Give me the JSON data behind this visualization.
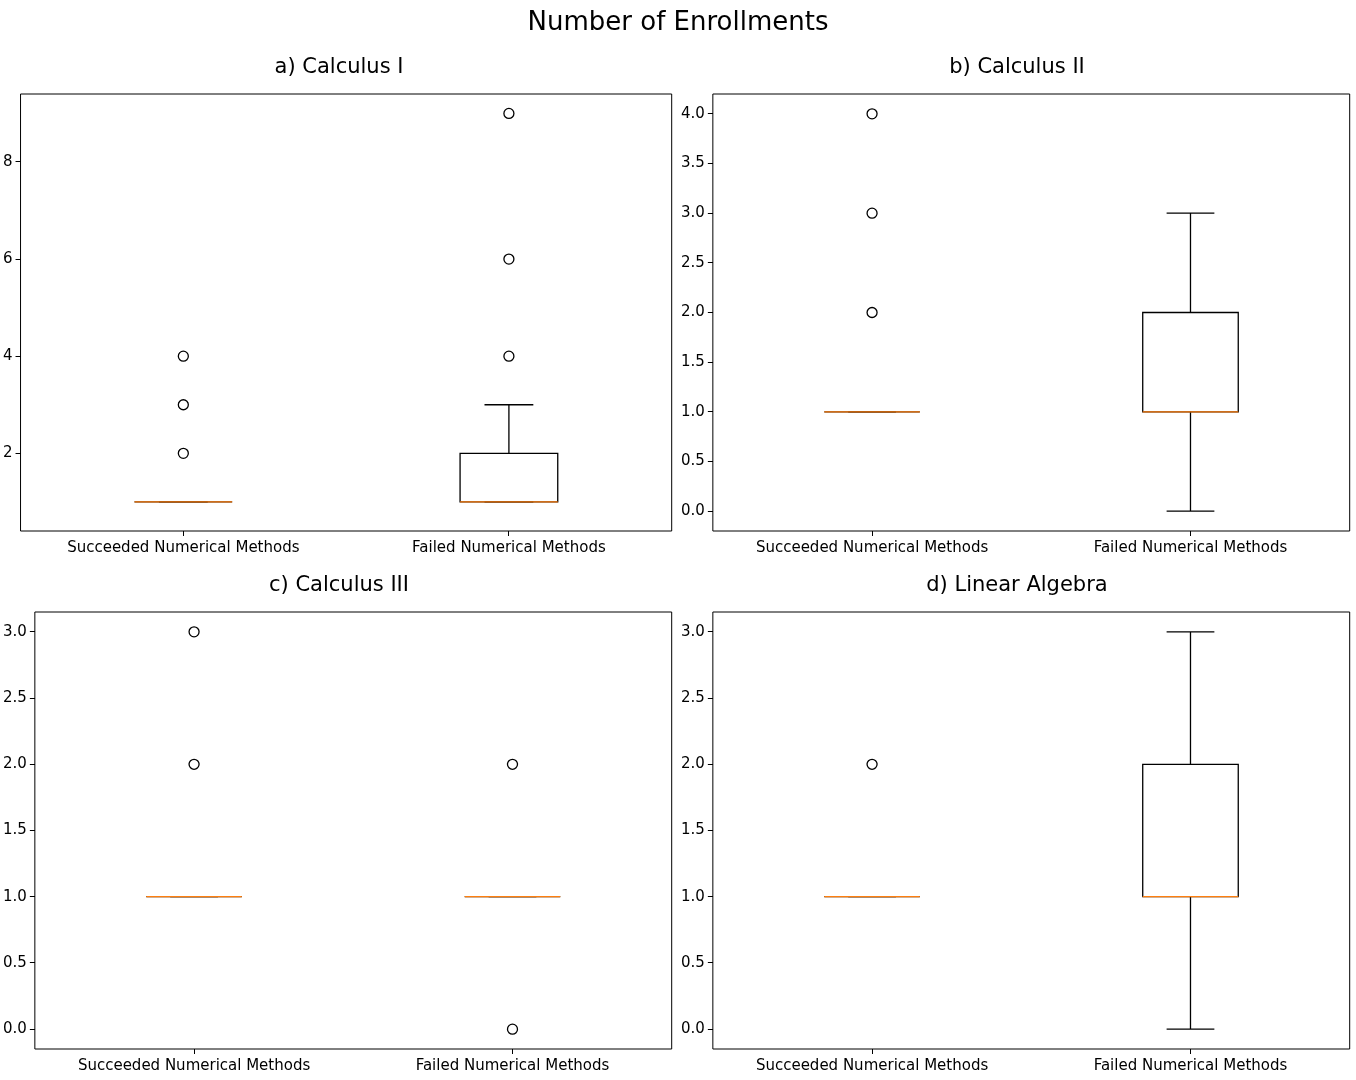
{
  "chart_data": [
    {
      "type": "box",
      "title": "a) Calculus I",
      "annotations": [
        "Number of Enrollments"
      ],
      "categories": [
        "Succeeded Numerical Methods",
        "Failed Numerical Methods"
      ],
      "ylim": [
        0.4,
        9.4
      ],
      "yticks": [
        2,
        4,
        6,
        8
      ],
      "grid": false,
      "legend": false,
      "color": "#000000",
      "boxes": [
        {
          "low": 1,
          "q1": 1,
          "median": 1,
          "q3": 1,
          "high": 1,
          "outliers": [
            2,
            3,
            4
          ]
        },
        {
          "low": 1,
          "q1": 1,
          "median": 1,
          "q3": 2,
          "high": 3,
          "outliers": [
            4,
            6,
            9
          ]
        }
      ]
    },
    {
      "type": "box",
      "title": "b) Calculus II",
      "categories": [
        "Succeeded Numerical Methods",
        "Failed Numerical Methods"
      ],
      "ylim": [
        -0.2,
        4.2
      ],
      "yticks": [
        {
          "value": 0,
          "label": "0.0"
        },
        {
          "value": 0.5,
          "label": "0.5"
        },
        {
          "value": 1,
          "label": "1.0"
        },
        {
          "value": 1.5,
          "label": "1.5"
        },
        {
          "value": 2,
          "label": "2.0"
        },
        {
          "value": 2.5,
          "label": "2.5"
        },
        {
          "value": 3,
          "label": "3.0"
        },
        {
          "value": 3.5,
          "label": "3.5"
        },
        {
          "value": 4,
          "label": "4.0"
        }
      ],
      "grid": false,
      "legend": false,
      "color": "#000000",
      "boxes": [
        {
          "low": 1,
          "q1": 1,
          "median": 1,
          "q3": 1,
          "high": 1,
          "outliers": [
            2,
            3,
            4
          ]
        },
        {
          "low": 0,
          "q1": 1,
          "median": 1,
          "q3": 2,
          "high": 3
        }
      ]
    },
    {
      "type": "box",
      "title": "c) Calculus III",
      "categories": [
        "Succeeded Numerical Methods",
        "Failed Numerical Methods"
      ],
      "ylim": [
        -0.15,
        3.15
      ],
      "yticks": [
        {
          "value": 0,
          "label": "0.0"
        },
        {
          "value": 0.5,
          "label": "0.5"
        },
        {
          "value": 1,
          "label": "1.0"
        },
        {
          "value": 1.5,
          "label": "1.5"
        },
        {
          "value": 2,
          "label": "2.0"
        },
        {
          "value": 2.5,
          "label": "2.5"
        },
        {
          "value": 3,
          "label": "3.0"
        }
      ],
      "grid": false,
      "legend": false,
      "color": "#000000",
      "boxes": [
        {
          "low": 1,
          "q1": 1,
          "median": 1,
          "q3": 1,
          "high": 1,
          "outliers": [
            2,
            3
          ]
        },
        {
          "low": 1,
          "q1": 1,
          "median": 1,
          "q3": 1,
          "high": 1,
          "outliers": [
            0,
            2
          ]
        }
      ]
    },
    {
      "type": "box",
      "title": "d) Linear Algebra",
      "categories": [
        "Succeeded Numerical Methods",
        "Failed Numerical Methods"
      ],
      "ylim": [
        -0.15,
        3.15
      ],
      "yticks": [
        {
          "value": 0,
          "label": "0.0"
        },
        {
          "value": 0.5,
          "label": "0.5"
        },
        {
          "value": 1,
          "label": "1.0"
        },
        {
          "value": 1.5,
          "label": "1.5"
        },
        {
          "value": 2,
          "label": "2.0"
        },
        {
          "value": 2.5,
          "label": "2.5"
        },
        {
          "value": 3,
          "label": "3.0"
        }
      ],
      "grid": false,
      "legend": false,
      "color": "#000000",
      "boxes": [
        {
          "low": 1,
          "q1": 1,
          "median": 1,
          "q3": 1,
          "high": 1,
          "outliers": [
            2
          ]
        },
        {
          "low": 0,
          "q1": 1,
          "median": 1,
          "q3": 2,
          "high": 3
        }
      ]
    }
  ]
}
